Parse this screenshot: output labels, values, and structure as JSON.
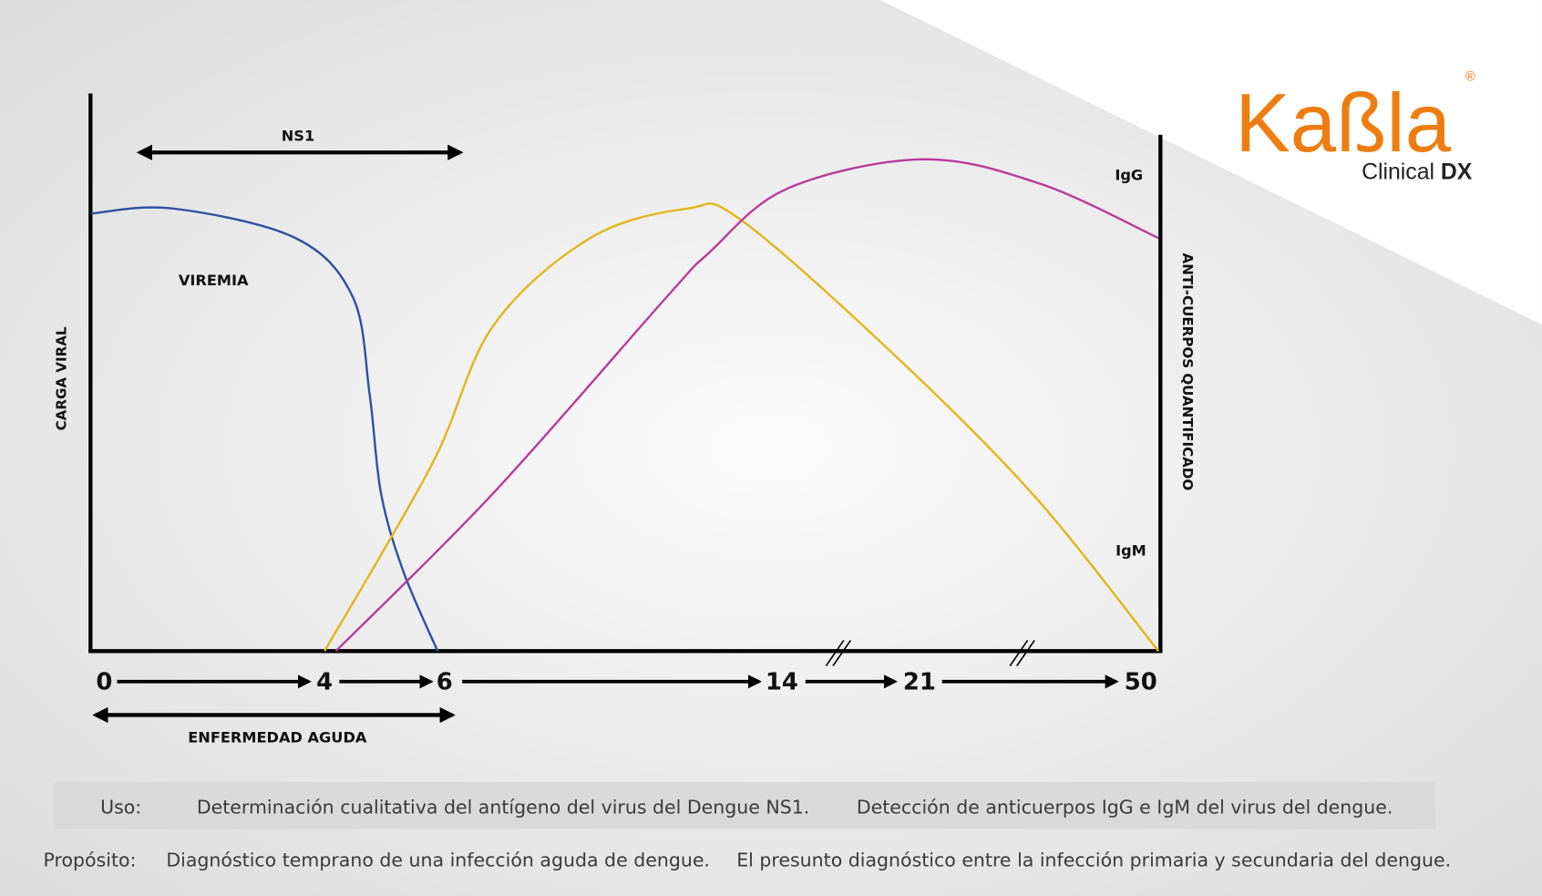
{
  "logo": {
    "brand": "Kaßla",
    "registered": "®",
    "subtitle_light": "Clinical",
    "subtitle_bold": "DX",
    "brand_color": "#ee7d11"
  },
  "chart_data": {
    "type": "line",
    "ylabel_left": "CARGA VIRAL",
    "ylabel_right": "ANTI-CUERPOS QUANTIFICADO",
    "x_ticks": [
      "0",
      "4",
      "6",
      "14",
      "21",
      "50"
    ],
    "x_axis_breaks_between": [
      [
        "14",
        "21"
      ],
      [
        "21",
        "50"
      ]
    ],
    "y_scale": "relative level (unlabeled)",
    "annotations": {
      "ns1": "NS1",
      "acute": "ENFERMEDAD AGUDA",
      "viremia": "VIREMIA"
    },
    "series": [
      {
        "name": "VIREMIA",
        "color": "#2b4fa3",
        "points": [
          [
            0,
            89
          ],
          [
            1.4,
            90
          ],
          [
            3.5,
            84
          ],
          [
            4.5,
            72
          ],
          [
            4.8,
            52
          ],
          [
            5.0,
            32
          ],
          [
            5.4,
            16
          ],
          [
            6,
            0
          ]
        ]
      },
      {
        "name": "IgM",
        "color": "#e2b514",
        "points": [
          [
            4,
            0
          ],
          [
            5.9,
            38
          ],
          [
            7.3,
            66
          ],
          [
            9.6,
            84
          ],
          [
            11.9,
            90
          ],
          [
            13.1,
            88
          ],
          [
            19.5,
            62
          ],
          [
            35,
            32
          ],
          [
            50,
            0
          ]
        ]
      },
      {
        "name": "IgG",
        "color": "#b8399c",
        "points": [
          [
            4.2,
            0
          ],
          [
            7.3,
            32
          ],
          [
            11.4,
            72
          ],
          [
            12.4,
            81
          ],
          [
            14.5,
            94
          ],
          [
            21.9,
            100
          ],
          [
            36,
            95
          ],
          [
            50,
            84
          ]
        ]
      }
    ]
  },
  "footer": {
    "uso_label": "Uso:",
    "uso_1": "Determinación cualitativa del antígeno del virus del Dengue NS1.",
    "uso_2": "Detección de anticuerpos IgG e IgM del virus del dengue.",
    "proposito_label": "Propósito:",
    "proposito_1": "Diagnóstico temprano de una infección aguda de dengue.",
    "proposito_2": "El presunto diagnóstico entre la infección primaria y secundaria del dengue."
  }
}
